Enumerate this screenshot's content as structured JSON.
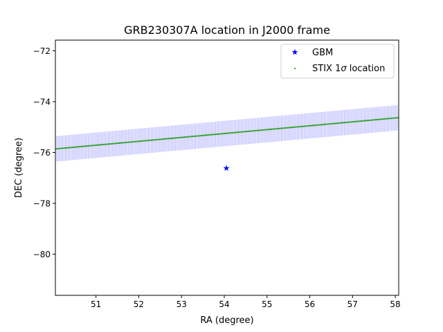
{
  "chart_data": {
    "type": "scatter",
    "title": "GRB230307A location in J2000 frame",
    "xlabel": "RA (degree)",
    "ylabel": "DEC (degree)",
    "xlim": [
      50.05,
      58.08
    ],
    "ylim": [
      -81.62,
      -71.58
    ],
    "xticks": [
      51,
      52,
      53,
      54,
      55,
      56,
      57,
      58
    ],
    "yticks": [
      -72,
      -74,
      -76,
      -78,
      -80
    ],
    "xtick_labels": [
      "51",
      "52",
      "53",
      "54",
      "55",
      "56",
      "57",
      "58"
    ],
    "ytick_labels": [
      "−72",
      "−74",
      "−76",
      "−78",
      "−80"
    ],
    "grid": false,
    "legend_position": "top-right",
    "series": [
      {
        "name": "GBM",
        "marker": "star",
        "color": "#0000ff",
        "points": [
          {
            "x": 54.05,
            "y": -76.62
          }
        ]
      },
      {
        "name": "STIX 1σ location",
        "marker": "dot",
        "color": "#2ca02c",
        "line": {
          "x_start": 50.05,
          "x_end": 58.08,
          "y_start": -75.86,
          "y_end": -74.63
        },
        "error_band": {
          "color": "#0000ff",
          "half_width": 0.5
        }
      }
    ],
    "legend": {
      "entries": [
        {
          "label": "GBM",
          "marker": "star",
          "color": "#0000ff"
        },
        {
          "label_main": "STIX 1",
          "label_sigma": "σ",
          "label_rest": " location",
          "marker": "dot",
          "color": "#2ca02c"
        }
      ]
    }
  }
}
